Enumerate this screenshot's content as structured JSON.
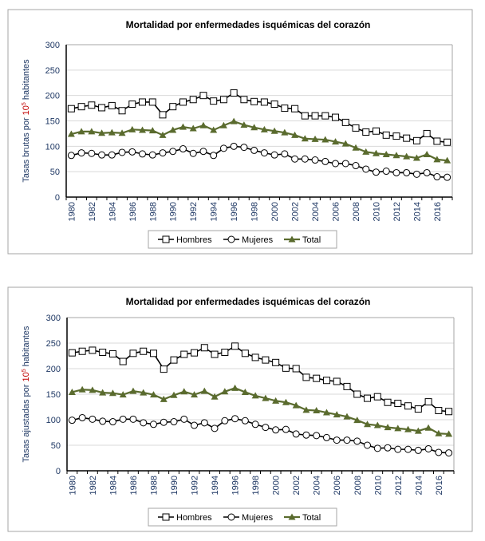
{
  "chart_data": [
    {
      "type": "line",
      "title": "Mortalidad por enfermedades isquémicas del corazón",
      "ylabel": "Tasas brutas por 10⁵ habitantes",
      "ylabel_parts": [
        "Tasas brutas por ",
        "10",
        "5",
        " habitantes"
      ],
      "xlabel": "",
      "ylim": [
        0,
        300
      ],
      "yticks": [
        "0",
        "50",
        "100",
        "150",
        "200",
        "250",
        "300"
      ],
      "x": [
        1980,
        1981,
        1982,
        1983,
        1984,
        1985,
        1986,
        1987,
        1988,
        1989,
        1990,
        1991,
        1992,
        1993,
        1994,
        1995,
        1996,
        1997,
        1998,
        1999,
        2000,
        2001,
        2002,
        2003,
        2004,
        2005,
        2006,
        2007,
        2008,
        2009,
        2010,
        2011,
        2012,
        2013,
        2014,
        2015,
        2016,
        2017
      ],
      "xticks": [
        "1980",
        "1982",
        "1984",
        "1986",
        "1988",
        "1990",
        "1992",
        "1994",
        "1996",
        "1998",
        "2000",
        "2002",
        "2004",
        "2006",
        "2008",
        "2010",
        "2012",
        "2014",
        "2016"
      ],
      "grid": true,
      "legend_position": "bottom",
      "series": [
        {
          "name": "Hombres",
          "marker": "square",
          "color": "#000000",
          "values": [
            174,
            178,
            181,
            176,
            180,
            170,
            183,
            187,
            187,
            162,
            178,
            187,
            192,
            200,
            189,
            192,
            205,
            192,
            188,
            187,
            183,
            175,
            174,
            160,
            160,
            160,
            157,
            147,
            136,
            128,
            130,
            122,
            120,
            116,
            111,
            125,
            110,
            108
          ]
        },
        {
          "name": "Mujeres",
          "marker": "circle",
          "color": "#000000",
          "values": [
            82,
            87,
            86,
            83,
            83,
            88,
            89,
            85,
            83,
            87,
            90,
            95,
            86,
            90,
            82,
            96,
            100,
            98,
            92,
            87,
            83,
            85,
            75,
            75,
            73,
            70,
            66,
            66,
            62,
            55,
            49,
            51,
            48,
            48,
            45,
            48,
            40,
            39
          ]
        },
        {
          "name": "Total",
          "marker": "triangle",
          "color": "#5a6b2e",
          "values": [
            124,
            129,
            129,
            126,
            127,
            126,
            133,
            132,
            131,
            122,
            132,
            138,
            135,
            141,
            132,
            141,
            149,
            142,
            137,
            133,
            130,
            127,
            122,
            115,
            114,
            113,
            109,
            105,
            97,
            89,
            86,
            84,
            82,
            80,
            77,
            84,
            74,
            72
          ]
        }
      ]
    },
    {
      "type": "line",
      "title": "Mortalidad por enfermedades isquémicas del corazón",
      "ylabel": "Tasas ajustadas por 10⁵ habitantes",
      "ylabel_parts": [
        "Tasas ajustadas por ",
        "10",
        "5",
        " habitantes"
      ],
      "xlabel": "",
      "ylim": [
        0,
        300
      ],
      "yticks": [
        "0",
        "50",
        "100",
        "150",
        "200",
        "250",
        "300"
      ],
      "x": [
        1980,
        1981,
        1982,
        1983,
        1984,
        1985,
        1986,
        1987,
        1988,
        1989,
        1990,
        1991,
        1992,
        1993,
        1994,
        1995,
        1996,
        1997,
        1998,
        1999,
        2000,
        2001,
        2002,
        2003,
        2004,
        2005,
        2006,
        2007,
        2008,
        2009,
        2010,
        2011,
        2012,
        2013,
        2014,
        2015,
        2016,
        2017
      ],
      "xticks": [
        "1980",
        "1982",
        "1984",
        "1986",
        "1988",
        "1990",
        "1992",
        "1994",
        "1996",
        "1998",
        "2000",
        "2002",
        "2004",
        "2006",
        "2008",
        "2010",
        "2012",
        "2014",
        "2016"
      ],
      "grid": true,
      "legend_position": "bottom",
      "series": [
        {
          "name": "Hombres",
          "marker": "square",
          "color": "#000000",
          "values": [
            231,
            234,
            236,
            232,
            229,
            214,
            230,
            234,
            230,
            199,
            217,
            228,
            231,
            241,
            228,
            232,
            244,
            230,
            222,
            217,
            212,
            201,
            200,
            183,
            181,
            177,
            175,
            165,
            150,
            142,
            145,
            134,
            132,
            127,
            121,
            135,
            118,
            116
          ]
        },
        {
          "name": "Mujeres",
          "marker": "circle",
          "color": "#000000",
          "values": [
            99,
            104,
            101,
            97,
            96,
            101,
            101,
            94,
            91,
            95,
            96,
            101,
            89,
            94,
            83,
            98,
            102,
            98,
            91,
            85,
            80,
            81,
            72,
            70,
            69,
            65,
            60,
            60,
            58,
            50,
            44,
            45,
            42,
            42,
            40,
            43,
            36,
            35
          ]
        },
        {
          "name": "Total",
          "marker": "triangle",
          "color": "#5a6b2e",
          "values": [
            154,
            159,
            158,
            153,
            152,
            149,
            156,
            153,
            149,
            140,
            148,
            155,
            149,
            156,
            145,
            155,
            162,
            154,
            147,
            142,
            137,
            134,
            128,
            119,
            118,
            114,
            110,
            106,
            99,
            91,
            89,
            85,
            83,
            81,
            78,
            84,
            73,
            72
          ]
        }
      ]
    }
  ],
  "colors": {
    "axis_text": "#1f3864",
    "title": "#000000",
    "superscript_accent": "#c00000",
    "grid": "#d9d9d9",
    "frame": "#a6a6a6"
  }
}
